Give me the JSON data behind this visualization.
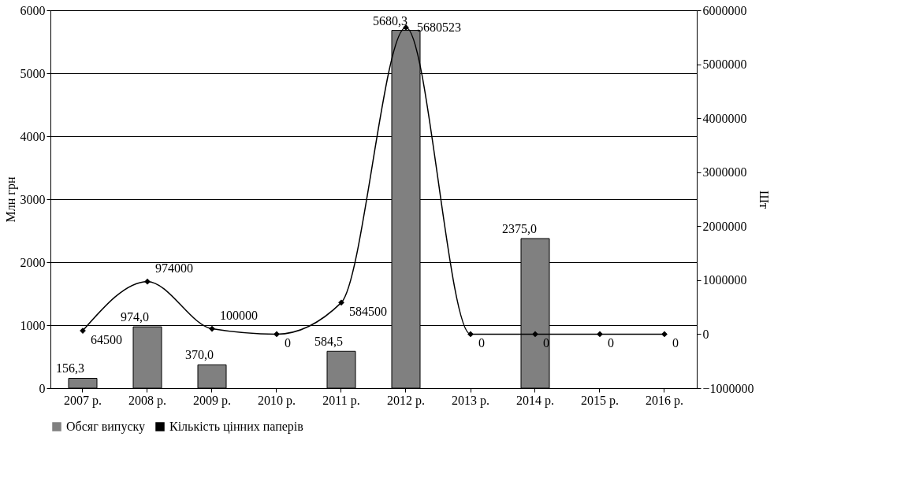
{
  "chart_data": {
    "type": "bar",
    "categories": [
      "2007 р.",
      "2008 р.",
      "2009 р.",
      "2010 р.",
      "2011 р.",
      "2012 р.",
      "2013 р.",
      "2014 р.",
      "2015 р.",
      "2016 р."
    ],
    "ylabel": "Млн грн",
    "y2label": "Шт",
    "ylim": [
      0,
      6000
    ],
    "yticks": [
      0,
      1000,
      2000,
      3000,
      4000,
      5000,
      6000
    ],
    "y2lim": [
      -1000000,
      6000000
    ],
    "y2ticks": [
      -1000000,
      0,
      1000000,
      2000000,
      3000000,
      4000000,
      5000000,
      6000000
    ],
    "grid": "y",
    "legend": "bottom",
    "series": [
      {
        "name": "Обсяг випуску",
        "color": "#808080",
        "values": [
          156.3,
          974.0,
          370.0,
          null,
          584.5,
          5680.3,
          null,
          2375.0,
          null,
          null
        ],
        "value_labels": [
          "156,3",
          "974,0",
          "370,0",
          null,
          "584,5",
          "5680,3",
          null,
          "2375,0",
          null,
          null
        ]
      },
      {
        "name": "Кількість цінних паперів",
        "type": "line",
        "axis": "y2",
        "color": "#000000",
        "marker": "diamond",
        "values": [
          64500,
          974000,
          100000,
          0,
          584500,
          5680523,
          0,
          0,
          0,
          0
        ],
        "value_labels": [
          "64500",
          "974000",
          "100000",
          "0",
          "584500",
          "5680523",
          "0",
          "0",
          "0",
          "0"
        ]
      }
    ]
  }
}
